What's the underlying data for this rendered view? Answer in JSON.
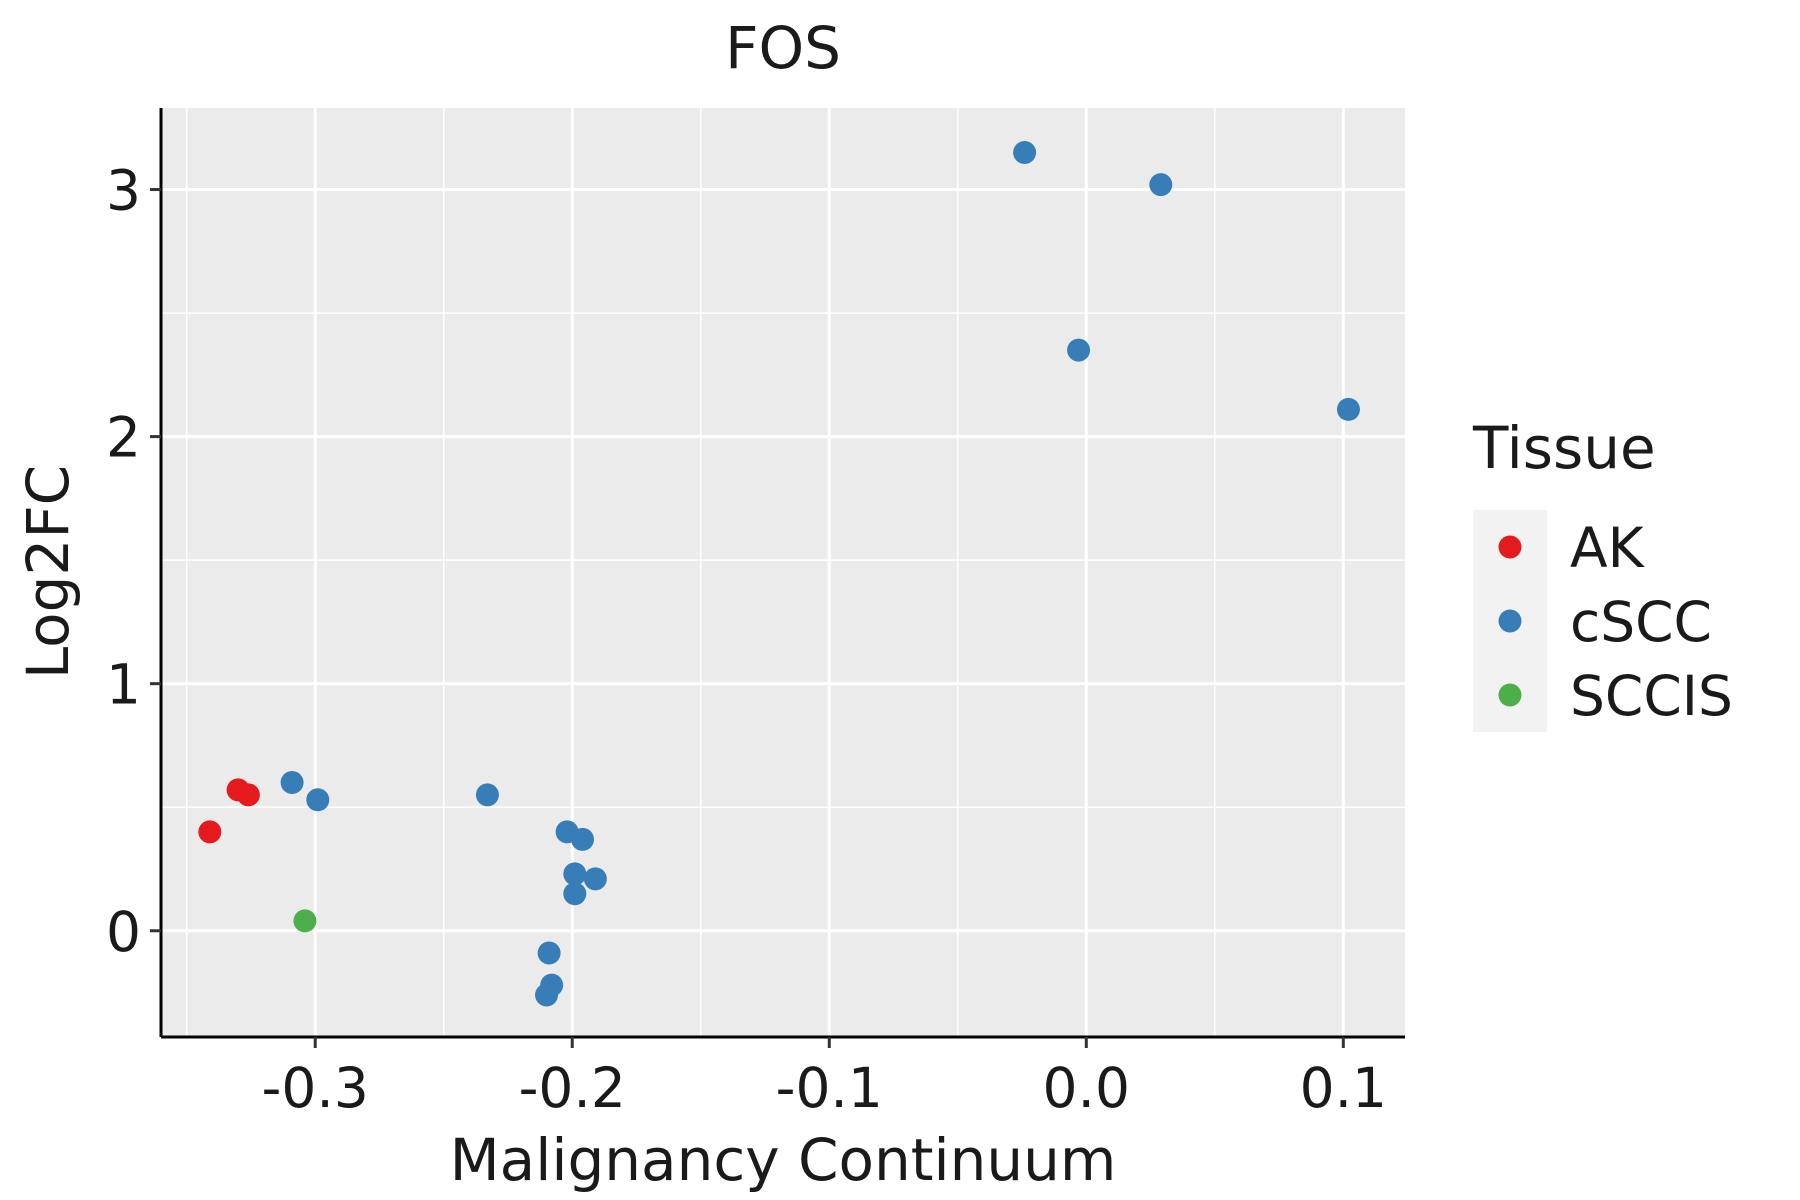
{
  "chart_data": {
    "type": "scatter",
    "title": "FOS",
    "xlabel": "Malignancy Continuum",
    "ylabel": "Log2FC",
    "xlim": [
      -0.36,
      0.124
    ],
    "ylim": [
      -0.43,
      3.33
    ],
    "x_ticks": [
      -0.3,
      -0.2,
      -0.1,
      0.0,
      0.1
    ],
    "x_tick_labels": [
      "-0.3",
      "-0.2",
      "-0.1",
      "0.0",
      "0.1"
    ],
    "y_ticks": [
      0,
      1,
      2,
      3
    ],
    "y_tick_labels": [
      "0",
      "1",
      "2",
      "3"
    ],
    "legend_title": "Tissue",
    "legend_position": "right",
    "grid": true,
    "series": [
      {
        "name": "AK",
        "color": "#E41A1C",
        "points": [
          {
            "x": -0.341,
            "y": 0.4
          },
          {
            "x": -0.33,
            "y": 0.57
          },
          {
            "x": -0.326,
            "y": 0.55
          }
        ]
      },
      {
        "name": "cSCC",
        "color": "#377EB8",
        "points": [
          {
            "x": -0.024,
            "y": 3.15
          },
          {
            "x": 0.029,
            "y": 3.02
          },
          {
            "x": -0.003,
            "y": 2.35
          },
          {
            "x": 0.102,
            "y": 2.11
          },
          {
            "x": -0.309,
            "y": 0.6
          },
          {
            "x": -0.299,
            "y": 0.53
          },
          {
            "x": -0.233,
            "y": 0.55
          },
          {
            "x": -0.202,
            "y": 0.4
          },
          {
            "x": -0.196,
            "y": 0.37
          },
          {
            "x": -0.199,
            "y": 0.23
          },
          {
            "x": -0.191,
            "y": 0.21
          },
          {
            "x": -0.199,
            "y": 0.15
          },
          {
            "x": -0.209,
            "y": -0.09
          },
          {
            "x": -0.208,
            "y": -0.22
          },
          {
            "x": -0.21,
            "y": -0.26
          }
        ]
      },
      {
        "name": "SCCIS",
        "color": "#4DAF4A",
        "points": [
          {
            "x": -0.304,
            "y": 0.04
          }
        ]
      }
    ]
  }
}
